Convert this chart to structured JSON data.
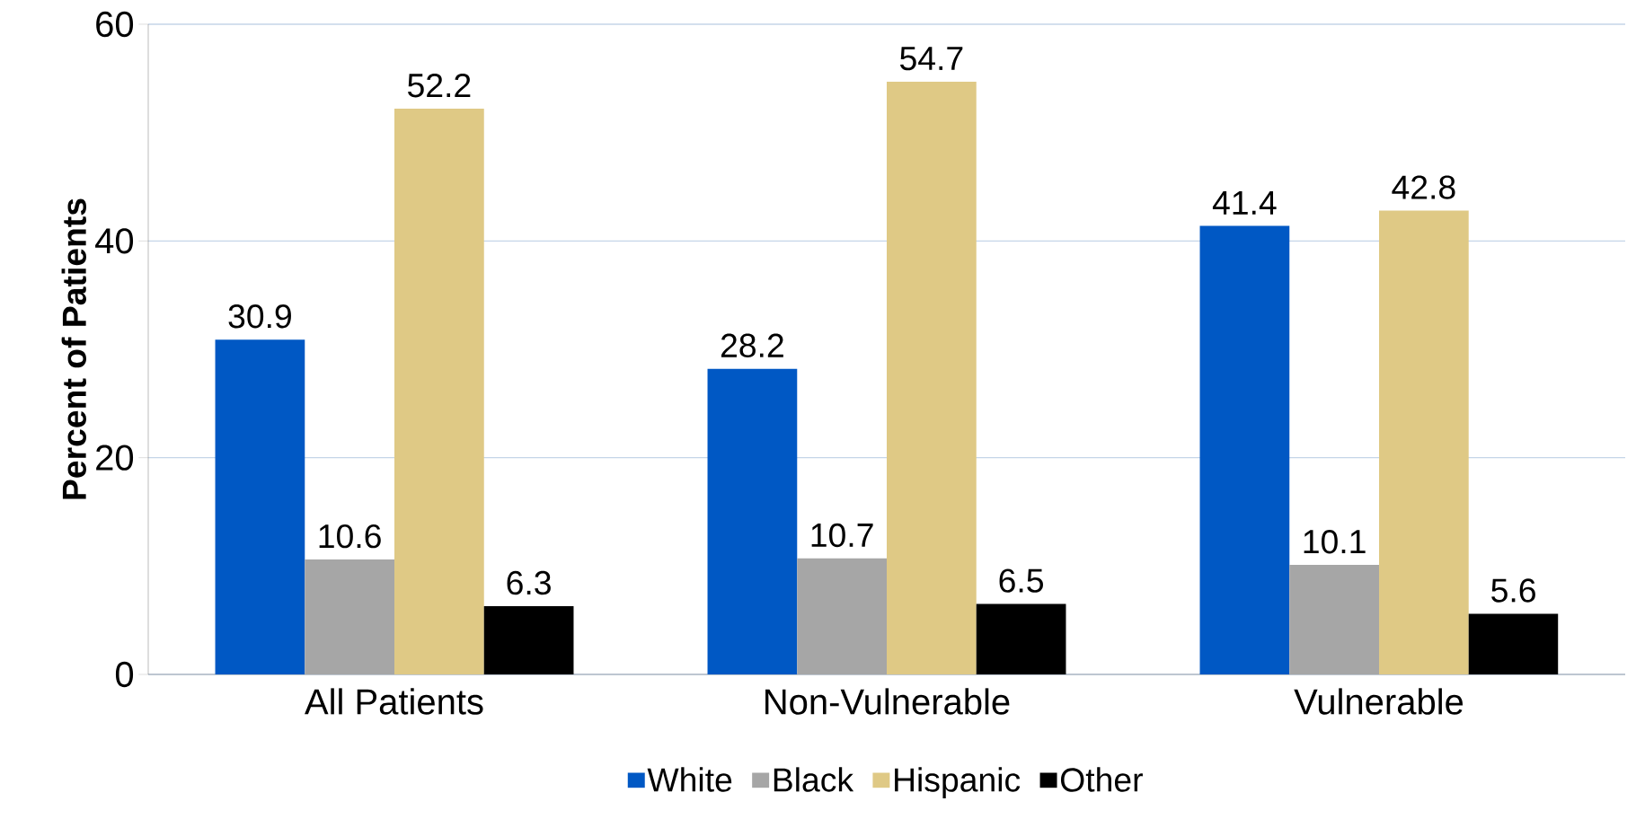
{
  "chart_data": {
    "type": "bar",
    "ylabel": "**Percent of Patients**",
    "categories": [
      "All Patients",
      "Non-Vulnerable",
      "Vulnerable"
    ],
    "series": [
      {
        "name": "White",
        "color": "#0058c4",
        "values": [
          30.9,
          28.2,
          41.4
        ]
      },
      {
        "name": "Black",
        "color": "#a6a6a6",
        "values": [
          10.6,
          10.7,
          10.1
        ]
      },
      {
        "name": "Hispanic",
        "color": "#dfc985",
        "values": [
          52.2,
          54.7,
          42.8
        ]
      },
      {
        "name": "Other",
        "color": "#000000",
        "values": [
          6.3,
          6.5,
          5.6
        ]
      }
    ],
    "ylim": [
      0,
      60
    ],
    "yticks": [
      0,
      20,
      40,
      60
    ],
    "grid": "y",
    "legend": "bottom",
    "data_labels": true
  }
}
